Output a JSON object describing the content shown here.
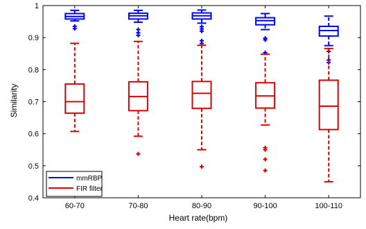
{
  "chart_data": {
    "type": "boxplot",
    "title": "",
    "xlabel": "Heart rate(bpm)",
    "ylabel": "Similarity",
    "ylim": [
      0.4,
      1.0
    ],
    "yticks": [
      0.4,
      0.5,
      0.6,
      0.7,
      0.8,
      0.9,
      1.0
    ],
    "ytick_labels": [
      "0.4",
      "0.5",
      "0.6",
      "0.7",
      "0.8",
      "0.9",
      "1"
    ],
    "categories": [
      "60-70",
      "70-80",
      "80-90",
      "90-100",
      "100-110"
    ],
    "grid": false,
    "legend_position": "bottom-left",
    "series": [
      {
        "name": "mmRBP",
        "color": "#0000ff",
        "boxes": [
          {
            "category": "60-70",
            "whisker_low": 0.952,
            "q1": 0.958,
            "median": 0.966,
            "q3": 0.975,
            "whisker_high": 0.985,
            "outliers": [
              0.935,
              0.928
            ]
          },
          {
            "category": "70-80",
            "whisker_low": 0.948,
            "q1": 0.958,
            "median": 0.968,
            "q3": 0.976,
            "whisker_high": 0.985,
            "outliers": [
              0.925,
              0.915,
              0.907
            ]
          },
          {
            "category": "80-90",
            "whisker_low": 0.945,
            "q1": 0.958,
            "median": 0.968,
            "q3": 0.977,
            "whisker_high": 0.986,
            "outliers": [
              0.934,
              0.927,
              0.92,
              0.89,
              0.882
            ]
          },
          {
            "category": "90-100",
            "whisker_low": 0.925,
            "q1": 0.94,
            "median": 0.953,
            "q3": 0.962,
            "whisker_high": 0.975,
            "outliers": [
              0.898,
              0.893,
              0.853
            ]
          },
          {
            "category": "100-110",
            "whisker_low": 0.875,
            "q1": 0.905,
            "median": 0.922,
            "q3": 0.935,
            "whisker_high": 0.967,
            "outliers": [
              0.857,
              0.83,
              0.822
            ]
          }
        ]
      },
      {
        "name": "FIR filter",
        "color": "#dd0000",
        "boxes": [
          {
            "category": "60-70",
            "whisker_low": 0.607,
            "q1": 0.664,
            "median": 0.7,
            "q3": 0.755,
            "whisker_high": 0.882,
            "outliers": []
          },
          {
            "category": "70-80",
            "whisker_low": 0.592,
            "q1": 0.672,
            "median": 0.716,
            "q3": 0.762,
            "whisker_high": 0.888,
            "outliers": [
              0.537
            ]
          },
          {
            "category": "80-90",
            "whisker_low": 0.55,
            "q1": 0.679,
            "median": 0.726,
            "q3": 0.763,
            "whisker_high": 0.876,
            "outliers": [
              0.497
            ]
          },
          {
            "category": "90-100",
            "whisker_low": 0.627,
            "q1": 0.68,
            "median": 0.718,
            "q3": 0.759,
            "whisker_high": 0.848,
            "outliers": [
              0.556,
              0.55,
              0.52,
              0.485
            ]
          },
          {
            "category": "100-110",
            "whisker_low": 0.45,
            "q1": 0.613,
            "median": 0.686,
            "q3": 0.767,
            "whisker_high": 0.866,
            "outliers": []
          }
        ]
      }
    ]
  }
}
